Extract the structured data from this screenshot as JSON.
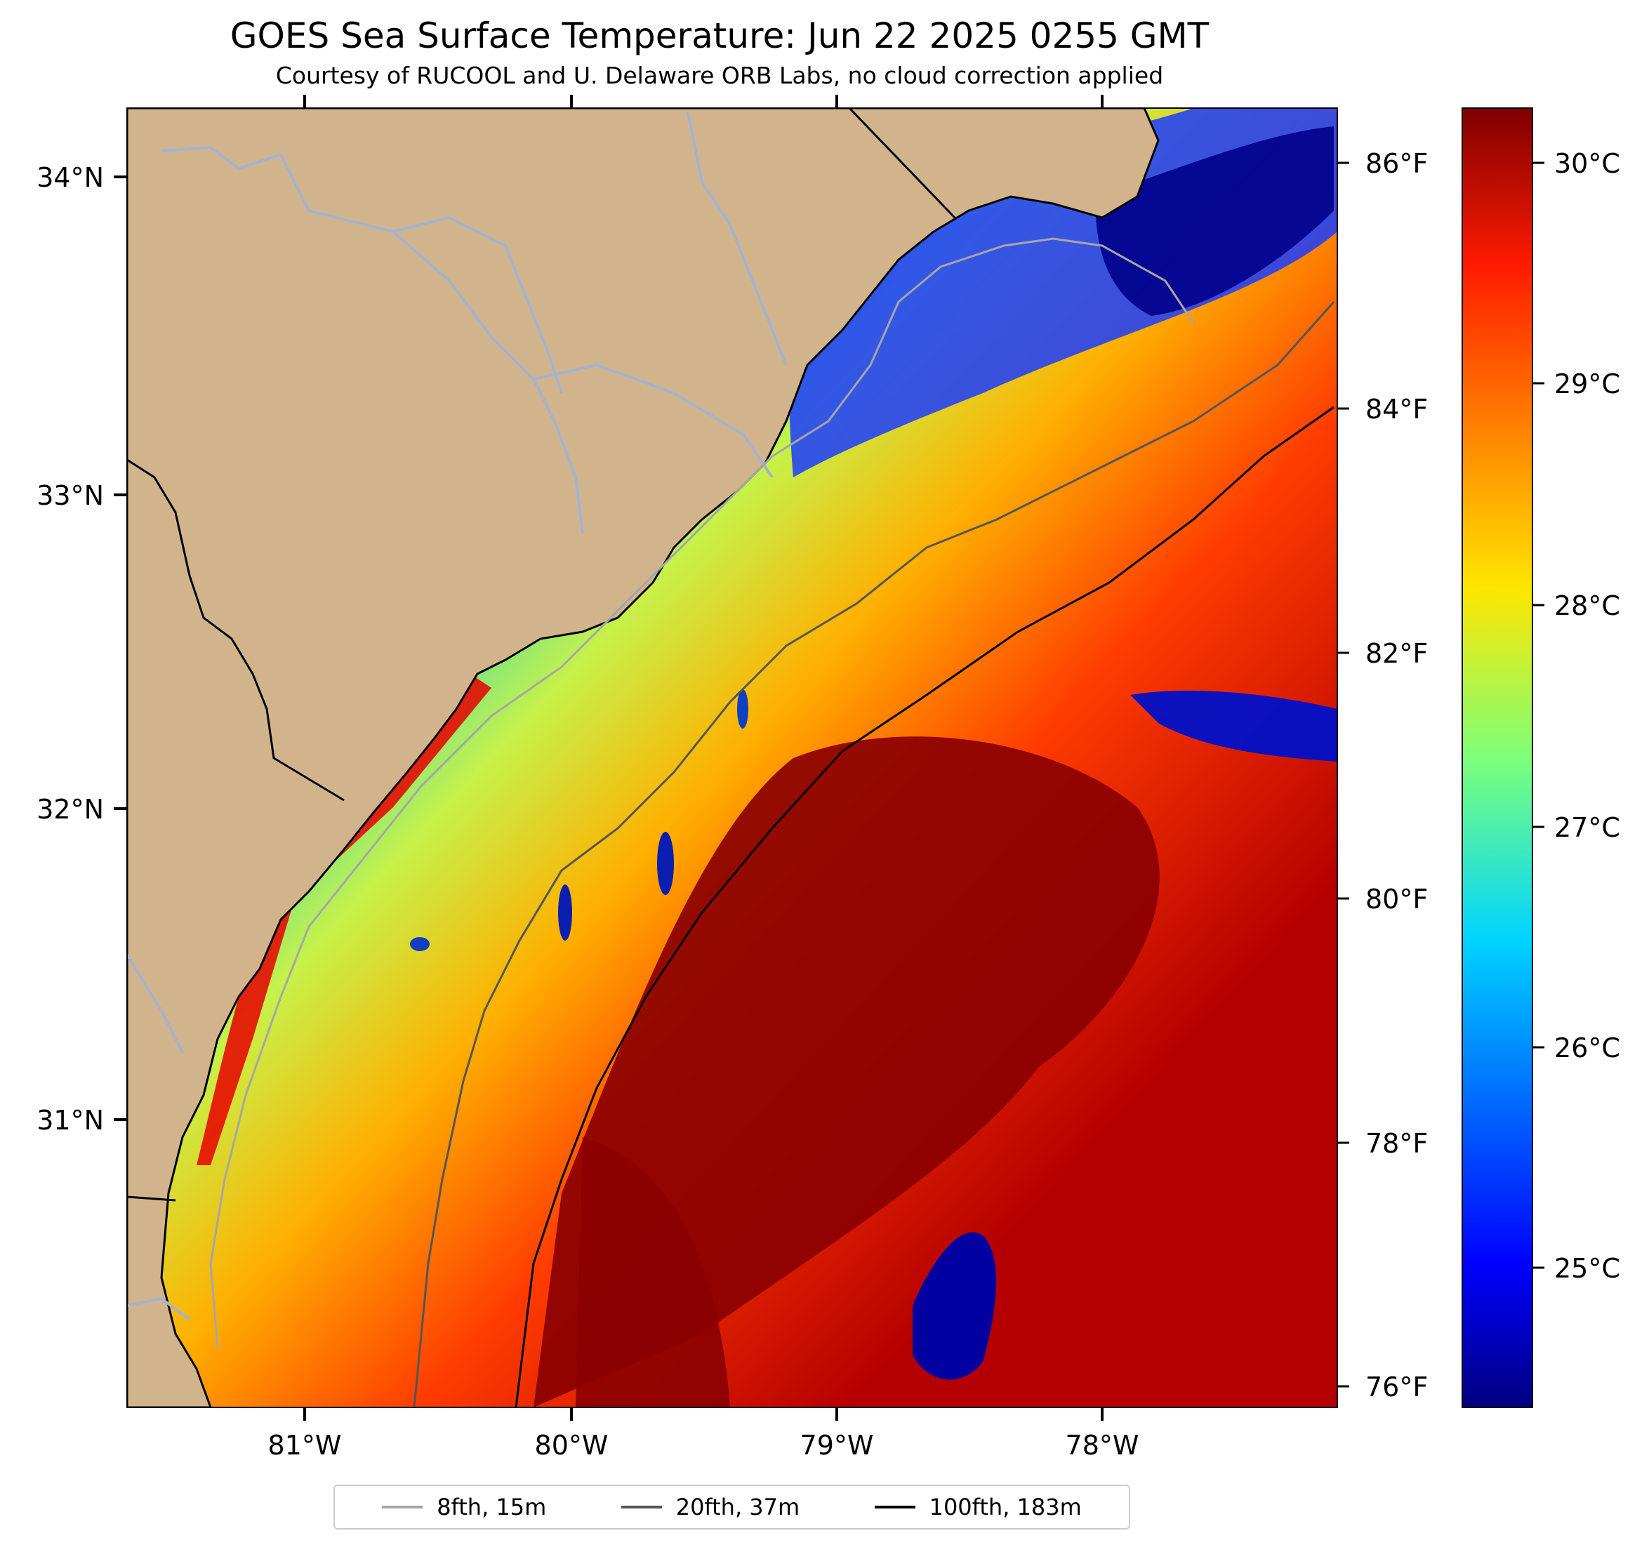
{
  "title": "GOES Sea Surface Temperature: Jun 22 2025 0255 GMT",
  "subtitle": "Courtesy of RUCOOL and U. Delaware ORB Labs, no cloud correction applied",
  "colors": {
    "land": "#d2b48c",
    "coastline": "#000000",
    "rivers": "#a4b3cf",
    "isobath_8fth": "#a6a6a6",
    "isobath_20fth": "#555555",
    "isobath_100fth": "#000000"
  },
  "map": {
    "lat_labels": [
      "34°N",
      "33°N",
      "32°N",
      "31°N"
    ],
    "lon_labels": [
      "81°W",
      "80°W",
      "79°W",
      "78°W"
    ],
    "fahrenheit_labels": [
      "86°F",
      "84°F",
      "82°F",
      "80°F",
      "78°F",
      "76°F"
    ]
  },
  "colorbar": {
    "colormap": "jet",
    "labels": [
      "30°C",
      "29°C",
      "28°C",
      "27°C",
      "26°C",
      "25°C"
    ]
  },
  "legend": [
    {
      "label": "8fth, 15m",
      "color": "#a6a6a6"
    },
    {
      "label": "20fth, 37m",
      "color": "#555555"
    },
    {
      "label": "100fth, 183m",
      "color": "#000000"
    }
  ]
}
